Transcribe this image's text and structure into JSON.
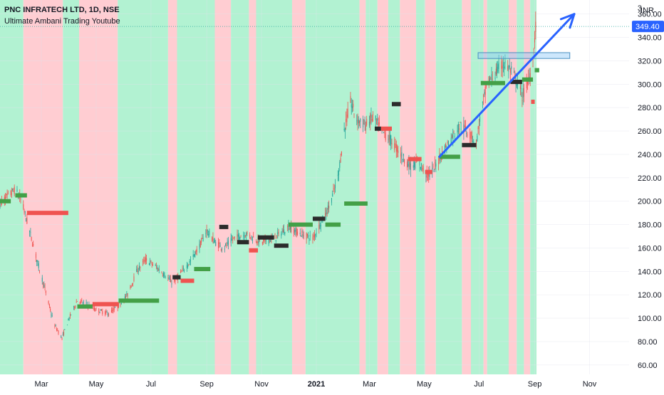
{
  "header": {
    "symbol_line": "PNC INFRATECH LTD, 1D, NSE",
    "indicator_line": "Ultimate Ambani Trading Youtube",
    "scale_label": "3",
    "currency": "INR"
  },
  "chart_data": {
    "type": "candlestick",
    "price_tag": "349.40",
    "ylim": [
      52,
      372
    ],
    "y_ticks": [
      60,
      80,
      100,
      120,
      140,
      160,
      180,
      200,
      220,
      240,
      260,
      280,
      300,
      320,
      340,
      360
    ],
    "y_tick_labels": [
      "60.00",
      "80.00",
      "100.00",
      "120.00",
      "140.00",
      "160.00",
      "180.00",
      "200.00",
      "220.00",
      "240.00",
      "260.00",
      "280.00",
      "300.00",
      "320.00",
      "340.00",
      "360.00"
    ],
    "x_start": "2020-01-15",
    "x_end": "2021-12-15",
    "x_ticks": [
      {
        "date": "2020-03-01",
        "label": "Mar",
        "bold": false
      },
      {
        "date": "2020-05-01",
        "label": "May",
        "bold": false
      },
      {
        "date": "2020-07-01",
        "label": "Jul",
        "bold": false
      },
      {
        "date": "2020-09-01",
        "label": "Sep",
        "bold": false
      },
      {
        "date": "2020-11-01",
        "label": "Nov",
        "bold": false
      },
      {
        "date": "2021-01-01",
        "label": "2021",
        "bold": true
      },
      {
        "date": "2021-03-01",
        "label": "Mar",
        "bold": false
      },
      {
        "date": "2021-05-01",
        "label": "May",
        "bold": false
      },
      {
        "date": "2021-07-01",
        "label": "Jul",
        "bold": false
      },
      {
        "date": "2021-09-01",
        "label": "Sep",
        "bold": false
      },
      {
        "date": "2021-11-01",
        "label": "Nov",
        "bold": false
      }
    ],
    "colors": {
      "up": "#26a69a",
      "down": "#ef5350",
      "bull_band": "#b2f2d2",
      "bear_band": "#ffcdd2",
      "green_level": "#43a047",
      "red_level": "#ef5350",
      "dark_level": "#2b2b2b",
      "arrow": "#2962ff",
      "box": "#90caf9",
      "price_tag": "#2962ff"
    },
    "price_path": [
      [
        "2020-01-15",
        198
      ],
      [
        "2020-02-01",
        210
      ],
      [
        "2020-02-08",
        200
      ],
      [
        "2020-02-15",
        180
      ],
      [
        "2020-02-25",
        150
      ],
      [
        "2020-03-05",
        125
      ],
      [
        "2020-03-15",
        95
      ],
      [
        "2020-03-24",
        83
      ],
      [
        "2020-04-01",
        100
      ],
      [
        "2020-04-10",
        115
      ],
      [
        "2020-04-20",
        112
      ],
      [
        "2020-05-01",
        107
      ],
      [
        "2020-05-15",
        104
      ],
      [
        "2020-05-25",
        110
      ],
      [
        "2020-06-05",
        120
      ],
      [
        "2020-06-15",
        140
      ],
      [
        "2020-06-25",
        150
      ],
      [
        "2020-07-05",
        145
      ],
      [
        "2020-07-15",
        138
      ],
      [
        "2020-07-25",
        130
      ],
      [
        "2020-08-05",
        140
      ],
      [
        "2020-08-15",
        150
      ],
      [
        "2020-08-25",
        163
      ],
      [
        "2020-09-01",
        175
      ],
      [
        "2020-09-10",
        165
      ],
      [
        "2020-09-20",
        160
      ],
      [
        "2020-10-01",
        168
      ],
      [
        "2020-10-15",
        172
      ],
      [
        "2020-11-01",
        165
      ],
      [
        "2020-11-15",
        168
      ],
      [
        "2020-12-01",
        178
      ],
      [
        "2020-12-15",
        172
      ],
      [
        "2020-12-28",
        168
      ],
      [
        "2021-01-05",
        180
      ],
      [
        "2021-01-15",
        195
      ],
      [
        "2021-01-25",
        220
      ],
      [
        "2021-02-01",
        260
      ],
      [
        "2021-02-08",
        285
      ],
      [
        "2021-02-15",
        270
      ],
      [
        "2021-02-25",
        265
      ],
      [
        "2021-03-05",
        272
      ],
      [
        "2021-03-15",
        260
      ],
      [
        "2021-03-25",
        252
      ],
      [
        "2021-04-05",
        240
      ],
      [
        "2021-04-15",
        230
      ],
      [
        "2021-04-25",
        233
      ],
      [
        "2021-05-05",
        222
      ],
      [
        "2021-05-12",
        228
      ],
      [
        "2021-05-20",
        240
      ],
      [
        "2021-06-01",
        255
      ],
      [
        "2021-06-10",
        265
      ],
      [
        "2021-06-20",
        258
      ],
      [
        "2021-06-28",
        250
      ],
      [
        "2021-07-03",
        275
      ],
      [
        "2021-07-10",
        300
      ],
      [
        "2021-07-20",
        310
      ],
      [
        "2021-07-28",
        318
      ],
      [
        "2021-08-05",
        312
      ],
      [
        "2021-08-12",
        302
      ],
      [
        "2021-08-18",
        290
      ],
      [
        "2021-08-24",
        300
      ],
      [
        "2021-08-30",
        320
      ],
      [
        "2021-09-02",
        349
      ]
    ],
    "regime_bands": [
      {
        "from": "2020-01-15",
        "to": "2020-02-10",
        "bull": true
      },
      {
        "from": "2020-02-10",
        "to": "2020-03-25",
        "bull": false
      },
      {
        "from": "2020-03-25",
        "to": "2020-04-12",
        "bull": true
      },
      {
        "from": "2020-04-12",
        "to": "2020-05-25",
        "bull": false
      },
      {
        "from": "2020-05-25",
        "to": "2020-07-20",
        "bull": true
      },
      {
        "from": "2020-07-20",
        "to": "2020-07-30",
        "bull": false
      },
      {
        "from": "2020-07-30",
        "to": "2020-09-10",
        "bull": true
      },
      {
        "from": "2020-09-10",
        "to": "2020-09-28",
        "bull": false
      },
      {
        "from": "2020-09-28",
        "to": "2020-10-18",
        "bull": true
      },
      {
        "from": "2020-10-18",
        "to": "2020-10-26",
        "bull": false
      },
      {
        "from": "2020-10-26",
        "to": "2020-12-05",
        "bull": true
      },
      {
        "from": "2020-12-05",
        "to": "2020-12-20",
        "bull": false
      },
      {
        "from": "2020-12-20",
        "to": "2021-02-18",
        "bull": true
      },
      {
        "from": "2021-02-18",
        "to": "2021-02-25",
        "bull": false
      },
      {
        "from": "2021-02-25",
        "to": "2021-03-10",
        "bull": true
      },
      {
        "from": "2021-03-10",
        "to": "2021-03-22",
        "bull": false
      },
      {
        "from": "2021-03-22",
        "to": "2021-04-04",
        "bull": true
      },
      {
        "from": "2021-04-04",
        "to": "2021-04-22",
        "bull": false
      },
      {
        "from": "2021-04-22",
        "to": "2021-05-02",
        "bull": true
      },
      {
        "from": "2021-05-02",
        "to": "2021-05-14",
        "bull": false
      },
      {
        "from": "2021-05-14",
        "to": "2021-06-12",
        "bull": true
      },
      {
        "from": "2021-06-12",
        "to": "2021-06-22",
        "bull": false
      },
      {
        "from": "2021-06-22",
        "to": "2021-07-06",
        "bull": true
      },
      {
        "from": "2021-07-06",
        "to": "2021-07-10",
        "bull": false
      },
      {
        "from": "2021-07-10",
        "to": "2021-08-03",
        "bull": true
      },
      {
        "from": "2021-08-03",
        "to": "2021-08-12",
        "bull": false
      },
      {
        "from": "2021-08-12",
        "to": "2021-08-20",
        "bull": true
      },
      {
        "from": "2021-08-20",
        "to": "2021-08-27",
        "bull": false
      },
      {
        "from": "2021-08-27",
        "to": "2021-09-03",
        "bull": true
      }
    ],
    "level_segments": [
      {
        "from": "2020-01-15",
        "to": "2020-01-27",
        "price": 200,
        "color": "green"
      },
      {
        "from": "2020-02-01",
        "to": "2020-02-14",
        "price": 205,
        "color": "green"
      },
      {
        "from": "2020-02-14",
        "to": "2020-03-31",
        "price": 190,
        "color": "red"
      },
      {
        "from": "2020-04-10",
        "to": "2020-04-27",
        "price": 110,
        "color": "green"
      },
      {
        "from": "2020-04-27",
        "to": "2020-05-26",
        "price": 112,
        "color": "red"
      },
      {
        "from": "2020-05-26",
        "to": "2020-07-10",
        "price": 115,
        "color": "green"
      },
      {
        "from": "2020-07-25",
        "to": "2020-08-03",
        "price": 135,
        "color": "dark"
      },
      {
        "from": "2020-08-03",
        "to": "2020-08-18",
        "price": 132,
        "color": "red"
      },
      {
        "from": "2020-08-18",
        "to": "2020-09-05",
        "price": 142,
        "color": "green"
      },
      {
        "from": "2020-09-15",
        "to": "2020-09-25",
        "price": 178,
        "color": "dark"
      },
      {
        "from": "2020-10-05",
        "to": "2020-10-18",
        "price": 165,
        "color": "dark"
      },
      {
        "from": "2020-10-18",
        "to": "2020-10-28",
        "price": 158,
        "color": "red"
      },
      {
        "from": "2020-10-28",
        "to": "2020-11-15",
        "price": 169,
        "color": "dark"
      },
      {
        "from": "2020-11-15",
        "to": "2020-12-01",
        "price": 162,
        "color": "dark"
      },
      {
        "from": "2020-12-01",
        "to": "2020-12-28",
        "price": 180,
        "color": "green"
      },
      {
        "from": "2020-12-28",
        "to": "2021-01-11",
        "price": 185,
        "color": "dark"
      },
      {
        "from": "2021-01-11",
        "to": "2021-01-28",
        "price": 180,
        "color": "green"
      },
      {
        "from": "2021-02-01",
        "to": "2021-02-27",
        "price": 198,
        "color": "green"
      },
      {
        "from": "2021-03-07",
        "to": "2021-03-14",
        "price": 262,
        "color": "dark"
      },
      {
        "from": "2021-03-14",
        "to": "2021-03-26",
        "price": 262,
        "color": "red"
      },
      {
        "from": "2021-03-26",
        "to": "2021-04-05",
        "price": 283,
        "color": "dark"
      },
      {
        "from": "2021-04-13",
        "to": "2021-04-28",
        "price": 236,
        "color": "red"
      },
      {
        "from": "2021-05-02",
        "to": "2021-05-10",
        "price": 225,
        "color": "red"
      },
      {
        "from": "2021-05-18",
        "to": "2021-06-10",
        "price": 238,
        "color": "green"
      },
      {
        "from": "2021-06-12",
        "to": "2021-06-28",
        "price": 248,
        "color": "dark"
      },
      {
        "from": "2021-07-03",
        "to": "2021-07-30",
        "price": 301,
        "color": "green"
      },
      {
        "from": "2021-08-05",
        "to": "2021-08-18",
        "price": 302,
        "color": "dark"
      },
      {
        "from": "2021-08-18",
        "to": "2021-08-30",
        "price": 304,
        "color": "green"
      },
      {
        "from": "2021-08-28",
        "to": "2021-09-01",
        "price": 285,
        "color": "red"
      },
      {
        "from": "2021-09-01",
        "to": "2021-09-06",
        "price": 312,
        "color": "green"
      }
    ],
    "resistance_box": {
      "from": "2021-06-30",
      "to": "2021-10-10",
      "top": 327,
      "bottom": 322
    },
    "trend_arrow": {
      "from_date": "2021-05-18",
      "from_price": 238,
      "to_date": "2021-10-15",
      "to_price": 360
    }
  }
}
